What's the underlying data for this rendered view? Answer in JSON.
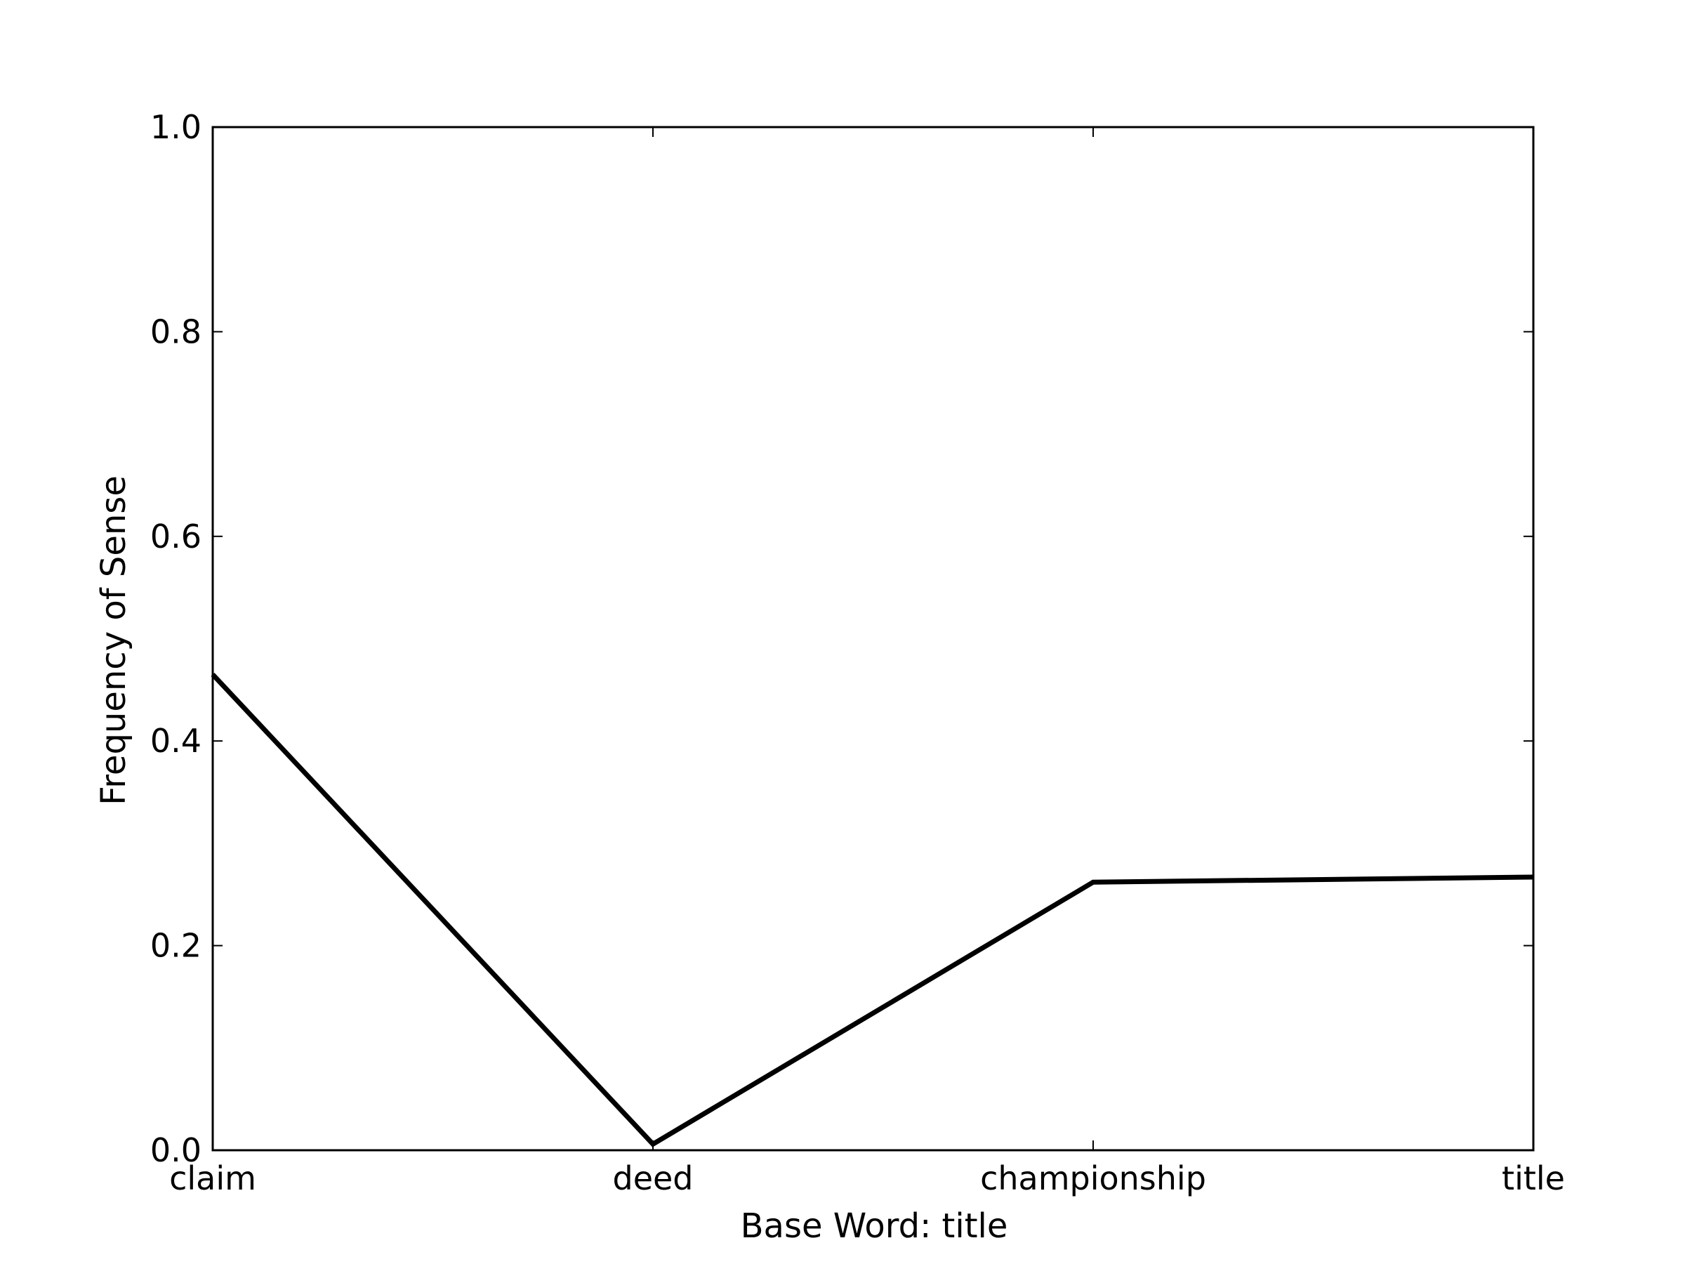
{
  "chart_data": {
    "type": "line",
    "categories": [
      "claim",
      "deed",
      "championship",
      "title"
    ],
    "series": [
      {
        "values": [
          0.465,
          0.006,
          0.262,
          0.267
        ]
      }
    ],
    "xlabel": "Base Word: title",
    "ylabel": "Frequency of Sense",
    "ylim": [
      0.0,
      1.0
    ],
    "yticks": [
      "0.0",
      "0.2",
      "0.4",
      "0.6",
      "0.8",
      "1.0"
    ],
    "grid": false,
    "line_color": "#000000"
  }
}
